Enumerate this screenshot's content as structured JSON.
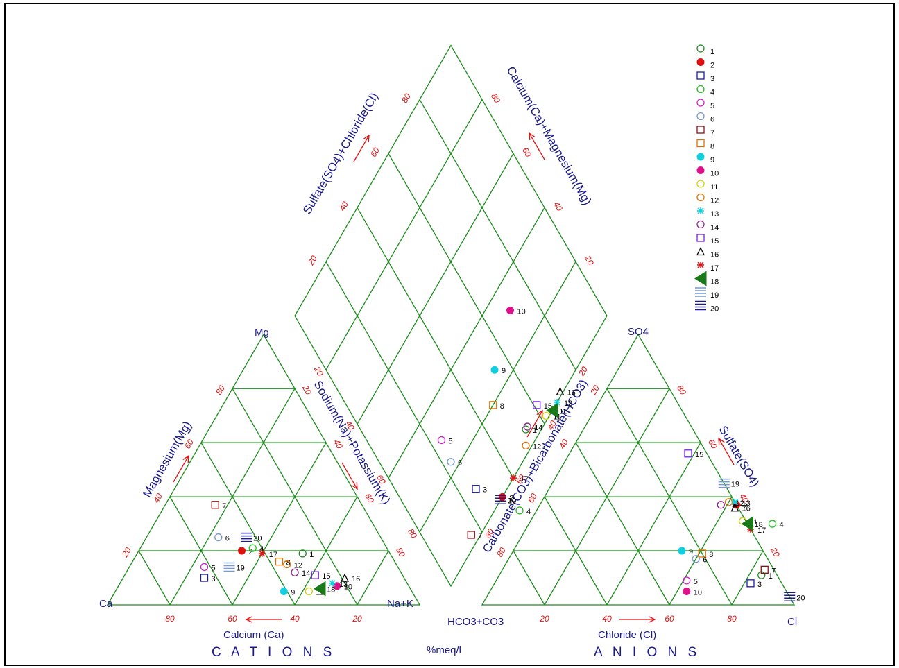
{
  "chart_data": {
    "type": "scatter",
    "subtype": "piper-trilinear",
    "units_label": "%meq/l",
    "cation_triangle": {
      "corner_left": "Ca",
      "corner_right": "Na+K",
      "corner_top": "Mg",
      "bottom_axis_label": "Calcium (Ca)",
      "left_axis_label": "Magnesium(Mg)",
      "right_axis_label": "Sodium(Na)+Potassium(K)",
      "group_label": "C A T I O N S",
      "ticks": [
        "80",
        "60",
        "40",
        "20"
      ]
    },
    "anion_triangle": {
      "corner_left": "HCO3+CO3",
      "corner_right": "Cl",
      "corner_top": "SO4",
      "bottom_axis_label": "Chloride (Cl)",
      "left_axis_label": "Carbonate(CO3)+Bicarbonate(HCO3)",
      "right_axis_label": "Sulfate(SO4)",
      "group_label": "A N I O N S",
      "ticks": [
        "20",
        "40",
        "60",
        "80"
      ]
    },
    "diamond": {
      "left_axis_label": "Sulfate(SO4)+Chloride(Cl)",
      "right_axis_label": "Calcium(Ca)+Magnesium(Mg)",
      "ticks": [
        "20",
        "40",
        "60",
        "80"
      ]
    },
    "samples": [
      {
        "name": "1",
        "color": "#228822",
        "marker": "circle",
        "cation": {
          "ca": 28,
          "mg": 19
        },
        "anion": {
          "cl": 84,
          "so4": 11
        }
      },
      {
        "name": "2",
        "color": "#e01010",
        "marker": "filled",
        "cation": {
          "ca": 47,
          "mg": 20
        },
        "anion": {
          "cl": 63,
          "so4": 37
        }
      },
      {
        "name": "3",
        "color": "#1a1ab0",
        "marker": "square",
        "cation": {
          "ca": 64,
          "mg": 10
        },
        "anion": {
          "cl": 82,
          "so4": 8
        }
      },
      {
        "name": "4",
        "color": "#22c022",
        "marker": "circle",
        "cation": {
          "ca": 43,
          "mg": 21
        },
        "anion": {
          "cl": 78,
          "so4": 30
        }
      },
      {
        "name": "5",
        "color": "#d020d0",
        "marker": "circle",
        "cation": {
          "ca": 62,
          "mg": 14
        },
        "anion": {
          "cl": 61,
          "so4": 9
        }
      },
      {
        "name": "6",
        "color": "#7799cc",
        "marker": "circle",
        "cation": {
          "ca": 52,
          "mg": 25
        },
        "anion": {
          "cl": 60,
          "so4": 17
        }
      },
      {
        "name": "7",
        "color": "#8a1010",
        "marker": "square",
        "cation": {
          "ca": 47,
          "mg": 37
        },
        "anion": {
          "cl": 84,
          "so4": 13
        }
      },
      {
        "name": "8",
        "color": "#e07000",
        "marker": "square",
        "cation": {
          "ca": 37,
          "mg": 16
        },
        "anion": {
          "cl": 61,
          "so4": 19
        }
      },
      {
        "name": "9",
        "color": "#10d0e0",
        "marker": "filled",
        "cation": {
          "ca": 41,
          "mg": 5
        },
        "anion": {
          "cl": 54,
          "so4": 20
        }
      },
      {
        "name": "10",
        "color": "#e0108a",
        "marker": "filled",
        "cation": {
          "ca": 23,
          "mg": 7
        },
        "anion": {
          "cl": 63,
          "so4": 5
        }
      },
      {
        "name": "11",
        "color": "#d0d010",
        "marker": "circle",
        "cation": {
          "ca": 33,
          "mg": 5
        },
        "anion": {
          "cl": 68,
          "so4": 31
        }
      },
      {
        "name": "12",
        "color": "#e07000",
        "marker": "circle",
        "cation": {
          "ca": 35,
          "mg": 15
        },
        "anion": {
          "cl": 60,
          "so4": 38
        }
      },
      {
        "name": "13",
        "color": "#10d0e0",
        "marker": "star",
        "cation": {
          "ca": 24,
          "mg": 8
        },
        "anion": {
          "cl": 62,
          "so4": 38
        }
      },
      {
        "name": "14",
        "color": "#8a208a",
        "marker": "circle",
        "cation": {
          "ca": 34,
          "mg": 12
        },
        "anion": {
          "cl": 58,
          "so4": 37
        }
      },
      {
        "name": "15",
        "color": "#7a20e0",
        "marker": "square",
        "cation": {
          "ca": 28,
          "mg": 11
        },
        "anion": {
          "cl": 38,
          "so4": 56
        }
      },
      {
        "name": "16",
        "color": "#000000",
        "marker": "triangle",
        "cation": {
          "ca": 19,
          "mg": 10
        },
        "anion": {
          "cl": 63,
          "so4": 36
        }
      },
      {
        "name": "17",
        "color": "#e01010",
        "marker": "star",
        "cation": {
          "ca": 41,
          "mg": 19
        },
        "anion": {
          "cl": 72,
          "so4": 28
        }
      },
      {
        "name": "18",
        "color": "#1a7a1a",
        "marker": "flag",
        "cation": {
          "ca": 29,
          "mg": 6
        },
        "anion": {
          "cl": 70,
          "so4": 30
        }
      },
      {
        "name": "19",
        "color": "#7799cc",
        "marker": "stack",
        "cation": {
          "ca": 54,
          "mg": 14
        },
        "anion": {
          "cl": 55,
          "so4": 45
        }
      },
      {
        "name": "20",
        "color": "#1a1a8a",
        "marker": "stack",
        "cation": {
          "ca": 43,
          "mg": 25
        },
        "anion": {
          "cl": 97,
          "so4": 3
        }
      }
    ]
  }
}
